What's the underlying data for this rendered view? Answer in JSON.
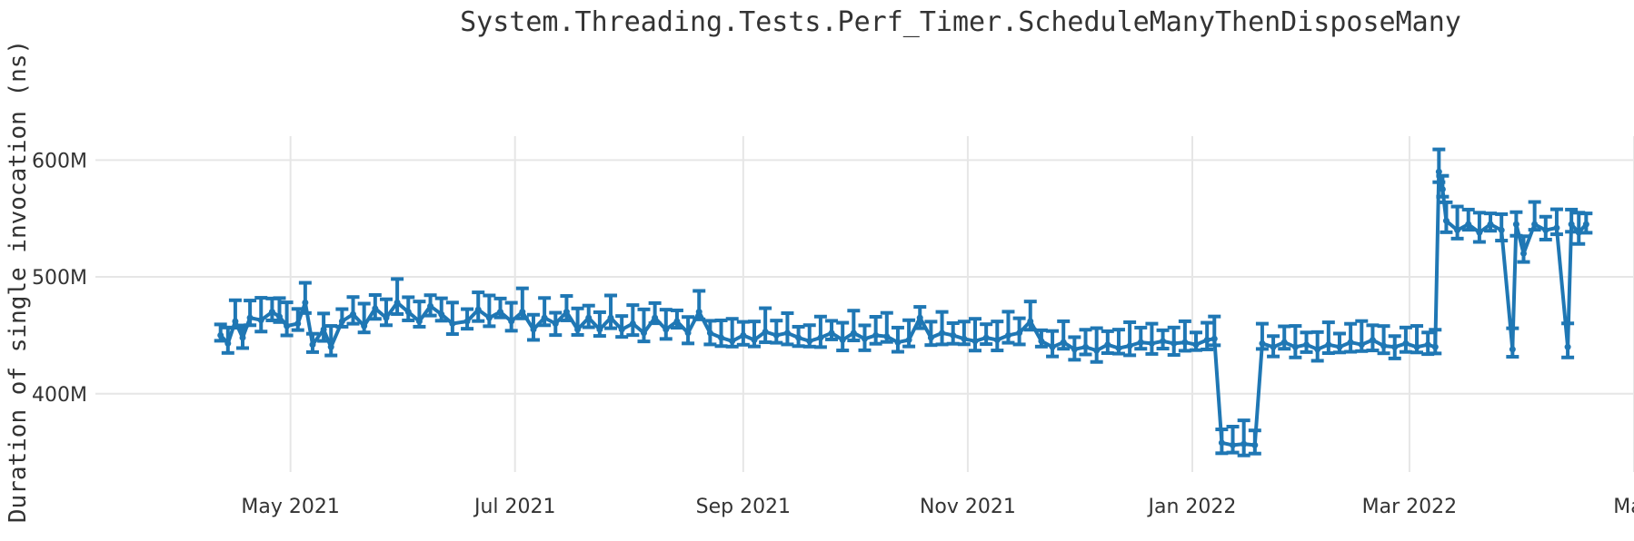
{
  "chart_data": {
    "type": "line",
    "title": "System.Threading.Tests.Perf_Timer.ScheduleManyThenDisposeMany",
    "ylabel": "Duration of single invocation (ns)",
    "xlabel": "",
    "xlim": [
      "2021-03-09",
      "2022-05-01"
    ],
    "ylim": [
      333,
      622
    ],
    "y_unit": "M",
    "y_ticks": [
      400,
      500,
      600
    ],
    "y_tick_labels": [
      "400M",
      "500M",
      "600M"
    ],
    "x_ticks": [
      "2021-05-01",
      "2021-07-01",
      "2021-09-01",
      "2021-11-01",
      "2022-01-01",
      "2022-03-01",
      "2022-05-01"
    ],
    "x_tick_labels": [
      "May 2021",
      "Jul 2021",
      "Sep 2021",
      "Nov 2021",
      "Jan 2022",
      "Mar 2022",
      "May"
    ],
    "grid": true,
    "series": [
      {
        "color": "#1f77b4",
        "error_bars": true,
        "points": [
          {
            "x": "2021-04-12",
            "y": 450
          },
          {
            "x": "2021-04-14",
            "y": 443
          },
          {
            "x": "2021-04-16",
            "y": 462
          },
          {
            "x": "2021-04-18",
            "y": 448
          },
          {
            "x": "2021-04-20",
            "y": 465
          },
          {
            "x": "2021-04-23",
            "y": 463
          },
          {
            "x": "2021-04-26",
            "y": 470
          },
          {
            "x": "2021-04-28",
            "y": 466
          },
          {
            "x": "2021-04-30",
            "y": 458
          },
          {
            "x": "2021-05-03",
            "y": 460
          },
          {
            "x": "2021-05-05",
            "y": 478
          },
          {
            "x": "2021-05-07",
            "y": 442
          },
          {
            "x": "2021-05-10",
            "y": 455
          },
          {
            "x": "2021-05-12",
            "y": 440
          },
          {
            "x": "2021-05-15",
            "y": 462
          },
          {
            "x": "2021-05-18",
            "y": 468
          },
          {
            "x": "2021-05-21",
            "y": 458
          },
          {
            "x": "2021-05-24",
            "y": 473
          },
          {
            "x": "2021-05-27",
            "y": 465
          },
          {
            "x": "2021-05-30",
            "y": 478
          },
          {
            "x": "2021-06-02",
            "y": 470
          },
          {
            "x": "2021-06-05",
            "y": 462
          },
          {
            "x": "2021-06-08",
            "y": 475
          },
          {
            "x": "2021-06-11",
            "y": 468
          },
          {
            "x": "2021-06-14",
            "y": 460
          },
          {
            "x": "2021-06-18",
            "y": 462
          },
          {
            "x": "2021-06-21",
            "y": 472
          },
          {
            "x": "2021-06-24",
            "y": 465
          },
          {
            "x": "2021-06-27",
            "y": 470
          },
          {
            "x": "2021-06-30",
            "y": 462
          },
          {
            "x": "2021-07-03",
            "y": 470
          },
          {
            "x": "2021-07-06",
            "y": 455
          },
          {
            "x": "2021-07-09",
            "y": 465
          },
          {
            "x": "2021-07-12",
            "y": 460
          },
          {
            "x": "2021-07-15",
            "y": 470
          },
          {
            "x": "2021-07-18",
            "y": 455
          },
          {
            "x": "2021-07-21",
            "y": 465
          },
          {
            "x": "2021-07-24",
            "y": 455
          },
          {
            "x": "2021-07-27",
            "y": 465
          },
          {
            "x": "2021-07-30",
            "y": 455
          },
          {
            "x": "2021-08-02",
            "y": 460
          },
          {
            "x": "2021-08-05",
            "y": 452
          },
          {
            "x": "2021-08-08",
            "y": 465
          },
          {
            "x": "2021-08-11",
            "y": 455
          },
          {
            "x": "2021-08-14",
            "y": 462
          },
          {
            "x": "2021-08-17",
            "y": 452
          },
          {
            "x": "2021-08-20",
            "y": 470
          },
          {
            "x": "2021-08-23",
            "y": 452
          },
          {
            "x": "2021-08-26",
            "y": 448
          },
          {
            "x": "2021-08-29",
            "y": 445
          },
          {
            "x": "2021-09-01",
            "y": 450
          },
          {
            "x": "2021-09-04",
            "y": 446
          },
          {
            "x": "2021-09-07",
            "y": 453
          },
          {
            "x": "2021-09-10",
            "y": 450
          },
          {
            "x": "2021-09-13",
            "y": 452
          },
          {
            "x": "2021-09-16",
            "y": 448
          },
          {
            "x": "2021-09-19",
            "y": 445
          },
          {
            "x": "2021-09-22",
            "y": 448
          },
          {
            "x": "2021-09-25",
            "y": 452
          },
          {
            "x": "2021-09-28",
            "y": 446
          },
          {
            "x": "2021-10-01",
            "y": 452
          },
          {
            "x": "2021-10-04",
            "y": 447
          },
          {
            "x": "2021-10-07",
            "y": 450
          },
          {
            "x": "2021-10-10",
            "y": 449
          },
          {
            "x": "2021-10-13",
            "y": 444
          },
          {
            "x": "2021-10-16",
            "y": 446
          },
          {
            "x": "2021-10-19",
            "y": 465
          },
          {
            "x": "2021-10-22",
            "y": 448
          },
          {
            "x": "2021-10-25",
            "y": 452
          },
          {
            "x": "2021-10-28",
            "y": 450
          },
          {
            "x": "2021-10-31",
            "y": 447
          },
          {
            "x": "2021-11-03",
            "y": 445
          },
          {
            "x": "2021-11-06",
            "y": 448
          },
          {
            "x": "2021-11-09",
            "y": 446
          },
          {
            "x": "2021-11-12",
            "y": 450
          },
          {
            "x": "2021-11-15",
            "y": 452
          },
          {
            "x": "2021-11-18",
            "y": 462
          },
          {
            "x": "2021-11-21",
            "y": 445
          },
          {
            "x": "2021-11-24",
            "y": 440
          },
          {
            "x": "2021-11-27",
            "y": 444
          },
          {
            "x": "2021-11-30",
            "y": 438
          },
          {
            "x": "2021-12-03",
            "y": 440
          },
          {
            "x": "2021-12-06",
            "y": 437
          },
          {
            "x": "2021-12-09",
            "y": 442
          },
          {
            "x": "2021-12-12",
            "y": 439
          },
          {
            "x": "2021-12-15",
            "y": 441
          },
          {
            "x": "2021-12-18",
            "y": 444
          },
          {
            "x": "2021-12-21",
            "y": 443
          },
          {
            "x": "2021-12-24",
            "y": 445
          },
          {
            "x": "2021-12-27",
            "y": 443
          },
          {
            "x": "2021-12-30",
            "y": 444
          },
          {
            "x": "2022-01-02",
            "y": 442
          },
          {
            "x": "2022-01-05",
            "y": 446
          },
          {
            "x": "2022-01-07",
            "y": 447
          },
          {
            "x": "2022-01-09",
            "y": 358
          },
          {
            "x": "2022-01-12",
            "y": 356
          },
          {
            "x": "2022-01-15",
            "y": 357
          },
          {
            "x": "2022-01-18",
            "y": 356
          },
          {
            "x": "2022-01-20",
            "y": 443
          },
          {
            "x": "2022-01-23",
            "y": 440
          },
          {
            "x": "2022-01-26",
            "y": 444
          },
          {
            "x": "2022-01-29",
            "y": 440
          },
          {
            "x": "2022-02-01",
            "y": 442
          },
          {
            "x": "2022-02-04",
            "y": 438
          },
          {
            "x": "2022-02-07",
            "y": 442
          },
          {
            "x": "2022-02-10",
            "y": 440
          },
          {
            "x": "2022-02-13",
            "y": 444
          },
          {
            "x": "2022-02-16",
            "y": 442
          },
          {
            "x": "2022-02-19",
            "y": 446
          },
          {
            "x": "2022-02-22",
            "y": 441
          },
          {
            "x": "2022-02-25",
            "y": 440
          },
          {
            "x": "2022-02-28",
            "y": 443
          },
          {
            "x": "2022-03-03",
            "y": 440
          },
          {
            "x": "2022-03-06",
            "y": 442
          },
          {
            "x": "2022-03-08",
            "y": 440
          },
          {
            "x": "2022-03-09",
            "y": 590
          },
          {
            "x": "2022-03-10",
            "y": 575
          },
          {
            "x": "2022-03-11",
            "y": 548
          },
          {
            "x": "2022-03-14",
            "y": 540
          },
          {
            "x": "2022-03-17",
            "y": 545
          },
          {
            "x": "2022-03-20",
            "y": 538
          },
          {
            "x": "2022-03-23",
            "y": 545
          },
          {
            "x": "2022-03-26",
            "y": 540
          },
          {
            "x": "2022-03-29",
            "y": 438
          },
          {
            "x": "2022-03-30",
            "y": 545
          },
          {
            "x": "2022-04-01",
            "y": 520
          },
          {
            "x": "2022-04-04",
            "y": 545
          },
          {
            "x": "2022-04-07",
            "y": 540
          },
          {
            "x": "2022-04-10",
            "y": 542
          },
          {
            "x": "2022-04-13",
            "y": 440
          },
          {
            "x": "2022-04-14",
            "y": 545
          },
          {
            "x": "2022-04-16",
            "y": 538
          },
          {
            "x": "2022-04-18",
            "y": 545
          }
        ]
      }
    ]
  }
}
